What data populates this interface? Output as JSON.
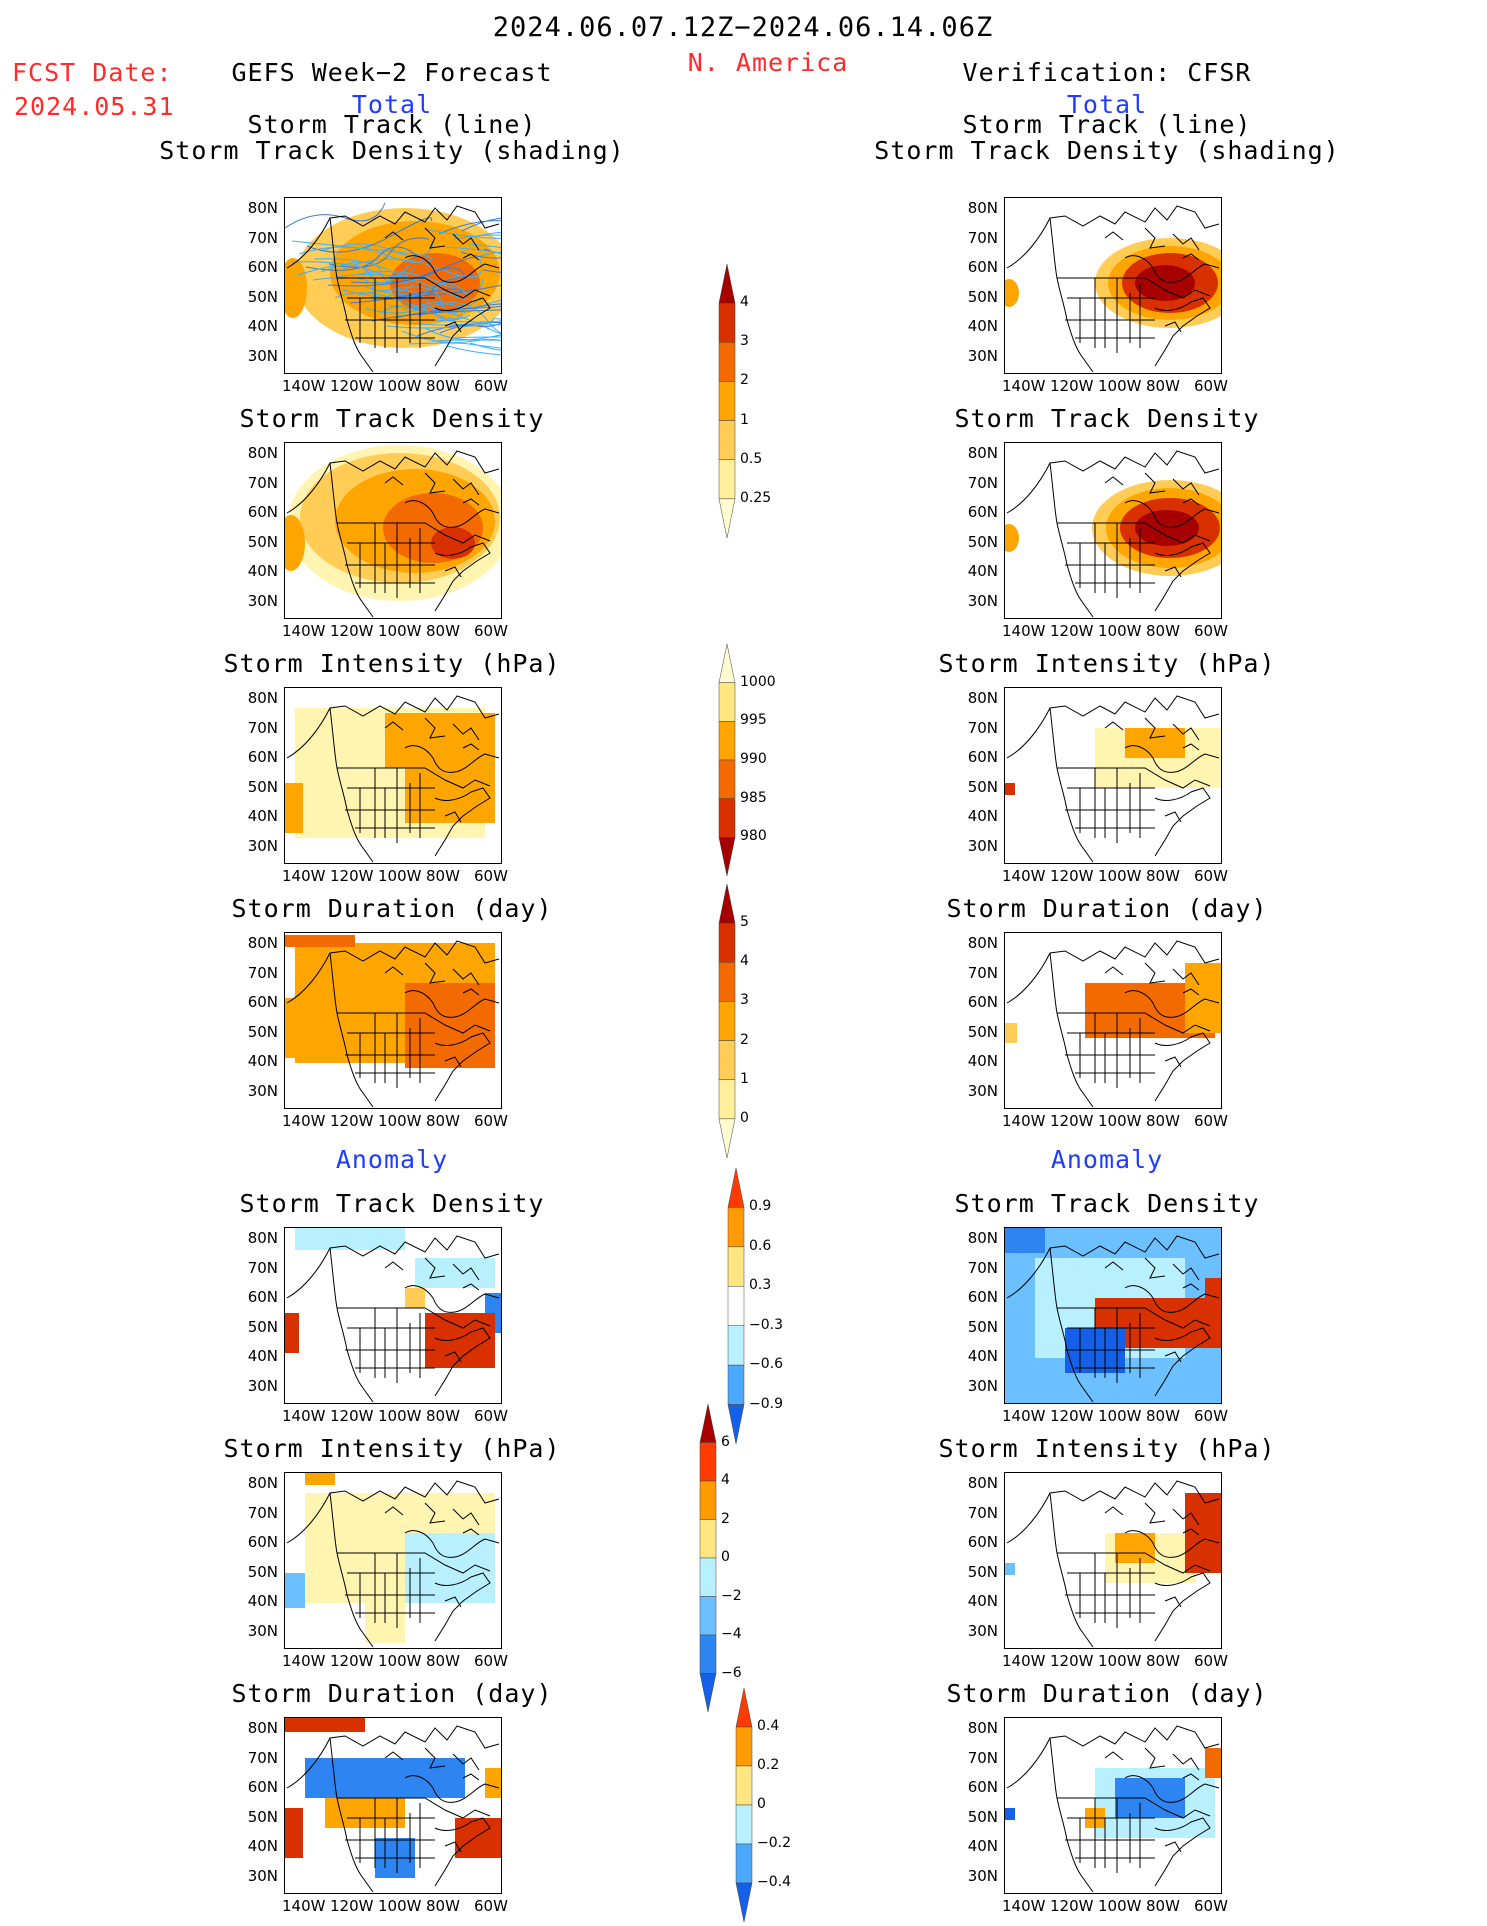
{
  "header": {
    "date_range": "2024.06.07.12Z−2024.06.14.06Z",
    "region": "N. America",
    "fcst_label": "FCST Date:",
    "fcst_date": "2024.05.31",
    "left_title": "GEFS Week−2 Forecast",
    "right_title": "Verification: CFSR",
    "left_subtitle": "Total",
    "right_subtitle": "Total"
  },
  "sections": {
    "anomaly_left": "Anomaly",
    "anomaly_right": "Anomaly"
  },
  "panel_titles": {
    "track_line": "Storm Track (line)",
    "track_shading": "Storm Track Density (shading)",
    "density": "Storm Track Density",
    "intensity": "Storm Intensity (hPa)",
    "duration": "Storm Duration (day)"
  },
  "axes": {
    "lon_ticks": [
      "140W",
      "120W",
      "100W",
      "80W",
      "60W"
    ],
    "lat_ticks": [
      "80N",
      "70N",
      "60N",
      "50N",
      "40N",
      "30N"
    ]
  },
  "colorbars": {
    "density": {
      "labels": [
        "4",
        "3",
        "2",
        "1",
        "0.5",
        "0.25"
      ],
      "colors": [
        "#a60000",
        "#d93000",
        "#f36a00",
        "#ffa500",
        "#ffcc55",
        "#ffef99",
        "#fffbd0"
      ]
    },
    "intensity": {
      "labels": [
        "1000",
        "995",
        "990",
        "985",
        "980"
      ],
      "colors": [
        "#fffbd0",
        "#ffe680",
        "#ffa500",
        "#f36a00",
        "#d93000",
        "#a60000"
      ]
    },
    "duration": {
      "labels": [
        "5",
        "4",
        "3",
        "2",
        "1",
        "0"
      ],
      "colors": [
        "#a60000",
        "#d93000",
        "#f36a00",
        "#ffa500",
        "#ffcc55",
        "#ffef99",
        "#fffbd0"
      ]
    },
    "anom_density": {
      "labels": [
        "0.9",
        "0.6",
        "0.3",
        "−0.3",
        "−0.6",
        "−0.9"
      ],
      "colors": [
        "#ff3b00",
        "#ff9a00",
        "#ffe680",
        "#ffffff",
        "#b8f0ff",
        "#4aa8ff",
        "#1560e8"
      ]
    },
    "anom_intensity": {
      "labels": [
        "6",
        "4",
        "2",
        "0",
        "−2",
        "−4",
        "−6"
      ],
      "colors": [
        "#a60000",
        "#ff3b00",
        "#ff9a00",
        "#ffe680",
        "#b8f0ff",
        "#6cc0ff",
        "#2e84f0",
        "#1560e8"
      ]
    },
    "anom_duration": {
      "labels": [
        "0.4",
        "0.2",
        "0",
        "−0.2",
        "−0.4"
      ],
      "colors": [
        "#ff3b00",
        "#ff9a00",
        "#ffe680",
        "#b8f0ff",
        "#4aa8ff",
        "#1560e8"
      ]
    }
  }
}
